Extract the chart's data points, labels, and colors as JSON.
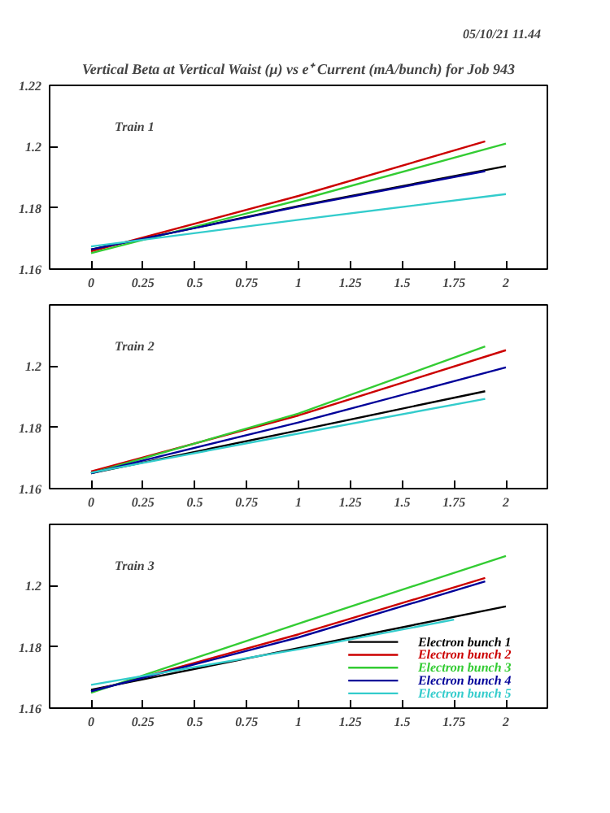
{
  "chart_data": [
    {
      "type": "line",
      "title": "Vertical Beta at Vertical Waist (μ) vs e⁺ Current (mA/bunch) for Job 943",
      "annotations": [
        "05/10/21   11.44",
        "Train 1"
      ],
      "xlim": [
        -0.2,
        2.2
      ],
      "xticks": [
        0,
        0.25,
        0.5,
        0.75,
        1,
        1.25,
        1.5,
        1.75,
        2
      ],
      "ylim": [
        1.16,
        1.22
      ],
      "yticks": [
        1.16,
        1.18,
        1.2,
        1.22
      ],
      "grid": false,
      "series": [
        {
          "color": "#000000",
          "x": [
            0,
            1,
            2
          ],
          "values": [
            1.1664,
            1.1806,
            1.1936
          ]
        },
        {
          "color": "#cc0000",
          "x": [
            0,
            1,
            1.9
          ],
          "values": [
            1.1658,
            1.1839,
            1.2017
          ]
        },
        {
          "color": "#33cc33",
          "x": [
            0,
            1,
            2
          ],
          "values": [
            1.1652,
            1.1825,
            1.201
          ]
        },
        {
          "color": "#000099",
          "x": [
            0,
            1,
            1.9
          ],
          "values": [
            1.1664,
            1.1804,
            1.192
          ]
        },
        {
          "color": "#33cccc",
          "x": [
            0,
            1,
            2
          ],
          "values": [
            1.1674,
            1.1761,
            1.1845
          ]
        }
      ]
    },
    {
      "type": "line",
      "annotations": [
        "Train 2"
      ],
      "xlim": [
        -0.2,
        2.2
      ],
      "xticks": [
        0,
        0.25,
        0.5,
        0.75,
        1,
        1.25,
        1.5,
        1.75,
        2
      ],
      "ylim": [
        1.16,
        1.22
      ],
      "yticks": [
        1.16,
        1.18,
        1.2
      ],
      "grid": false,
      "series": [
        {
          "color": "#000000",
          "x": [
            0,
            1,
            1.9
          ],
          "values": [
            1.165,
            1.179,
            1.1918
          ]
        },
        {
          "color": "#cc0000",
          "x": [
            0,
            1,
            2
          ],
          "values": [
            1.1656,
            1.1839,
            1.2052
          ]
        },
        {
          "color": "#33cc33",
          "x": [
            0,
            1,
            1.9
          ],
          "values": [
            1.165,
            1.1845,
            1.2064
          ]
        },
        {
          "color": "#000099",
          "x": [
            0,
            1,
            2
          ],
          "values": [
            1.165,
            1.1816,
            1.1996
          ]
        },
        {
          "color": "#33cccc",
          "x": [
            0,
            1,
            1.9
          ],
          "values": [
            1.1652,
            1.178,
            1.1893
          ]
        }
      ]
    },
    {
      "type": "line",
      "annotations": [
        "Train 3"
      ],
      "xlim": [
        -0.2,
        2.2
      ],
      "xticks": [
        0,
        0.25,
        0.5,
        0.75,
        1,
        1.25,
        1.5,
        1.75,
        2
      ],
      "ylim": [
        1.16,
        1.22
      ],
      "yticks": [
        1.16,
        1.18,
        1.2
      ],
      "grid": false,
      "legend": "bottom right",
      "series": [
        {
          "name": "Electron bunch 1",
          "color": "#000000",
          "x": [
            0,
            1,
            2
          ],
          "values": [
            1.166,
            1.1796,
            1.1932
          ]
        },
        {
          "name": "Electron bunch 2",
          "color": "#cc0000",
          "x": [
            0,
            1,
            1.9
          ],
          "values": [
            1.1655,
            1.1841,
            1.2025
          ]
        },
        {
          "name": "Electron bunch 3",
          "color": "#33cc33",
          "x": [
            0,
            1,
            2
          ],
          "values": [
            1.165,
            1.1876,
            1.2097
          ]
        },
        {
          "name": "Electron bunch 4",
          "color": "#000099",
          "x": [
            0,
            1,
            1.9
          ],
          "values": [
            1.1655,
            1.1831,
            1.2014
          ]
        },
        {
          "name": "Electron bunch 5",
          "color": "#33cccc",
          "x": [
            0,
            1,
            1.75
          ],
          "values": [
            1.1676,
            1.1792,
            1.1889
          ]
        }
      ]
    }
  ]
}
